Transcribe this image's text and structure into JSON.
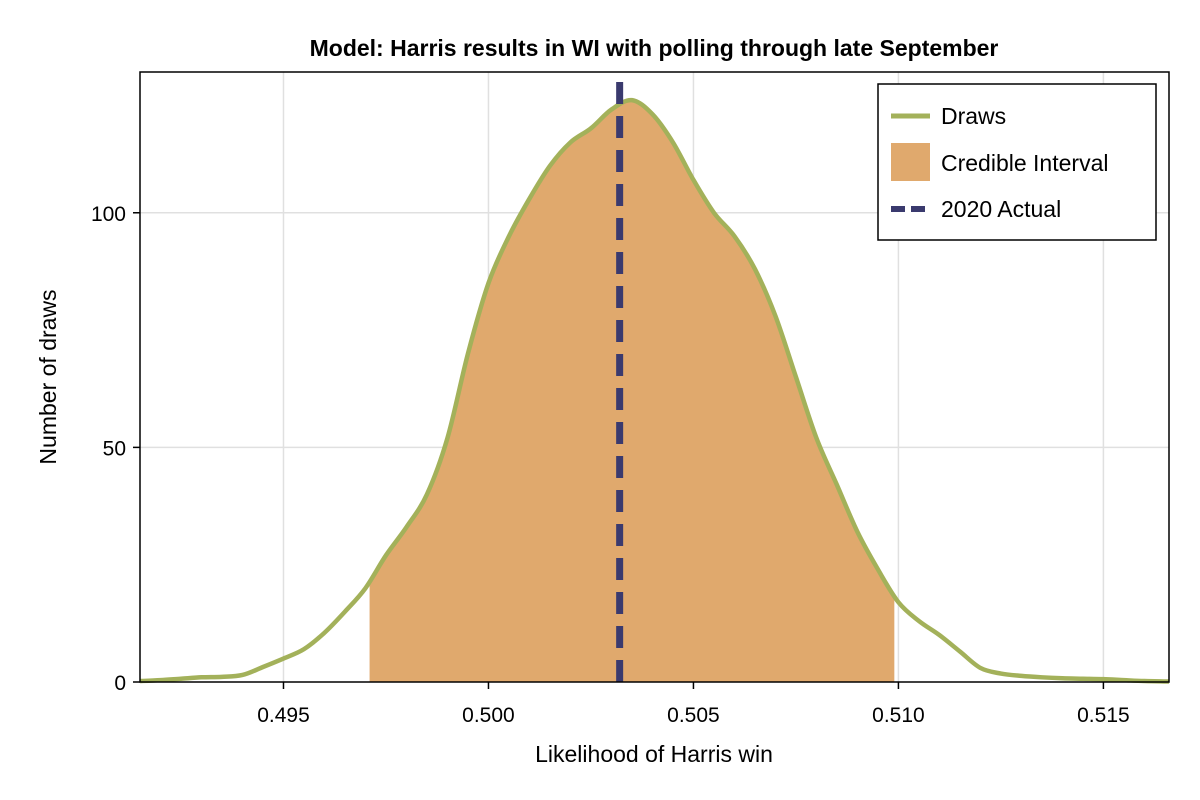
{
  "chart_data": {
    "type": "area",
    "title": "Model: Harris results in WI with polling through late September",
    "xlabel": "Likelihood of Harris win",
    "ylabel": "Number of draws",
    "xlim": [
      0.4915,
      0.5166
    ],
    "ylim": [
      0,
      130
    ],
    "xticks": [
      0.495,
      0.5,
      0.505,
      0.51,
      0.515
    ],
    "xtick_labels": [
      "0.495",
      "0.500",
      "0.505",
      "0.510",
      "0.515"
    ],
    "yticks": [
      0,
      50,
      100
    ],
    "ytick_labels": [
      "0",
      "50",
      "100"
    ],
    "grid": true,
    "legend_position": "top-right",
    "series": [
      {
        "name": "Draws",
        "color": "#a3b15a",
        "x": [
          0.4915,
          0.492,
          0.4925,
          0.493,
          0.4935,
          0.494,
          0.4945,
          0.495,
          0.4955,
          0.496,
          0.4965,
          0.497,
          0.4975,
          0.498,
          0.4985,
          0.499,
          0.4995,
          0.5,
          0.5005,
          0.501,
          0.5015,
          0.502,
          0.5025,
          0.503,
          0.5035,
          0.504,
          0.5045,
          0.505,
          0.5055,
          0.506,
          0.5065,
          0.507,
          0.5075,
          0.508,
          0.5085,
          0.509,
          0.5095,
          0.51,
          0.5105,
          0.511,
          0.5115,
          0.512,
          0.5125,
          0.513,
          0.5135,
          0.514,
          0.5145,
          0.515,
          0.5155,
          0.516,
          0.5166
        ],
        "y": [
          0.2,
          0.4,
          0.7,
          1.0,
          1.1,
          1.5,
          3.2,
          5.0,
          7.0,
          10.5,
          15.0,
          20.0,
          27.0,
          33.0,
          40.0,
          52.0,
          70.0,
          85.0,
          95.0,
          103.0,
          110.0,
          115.0,
          118.0,
          122.0,
          124.0,
          121.0,
          115.0,
          107.0,
          100.0,
          95.0,
          88.0,
          78.0,
          65.0,
          52.0,
          42.0,
          32.0,
          24.0,
          17.0,
          13.0,
          10.0,
          6.5,
          3.0,
          1.8,
          1.3,
          1.0,
          0.8,
          0.7,
          0.6,
          0.4,
          0.2,
          0.1
        ]
      }
    ],
    "credible_interval": {
      "name": "Credible Interval",
      "color": "#e0a96d",
      "x_min": 0.4971,
      "x_max": 0.5099
    },
    "reference_line": {
      "name": "2020 Actual",
      "color": "#3a3a6e",
      "x": 0.5032
    }
  }
}
